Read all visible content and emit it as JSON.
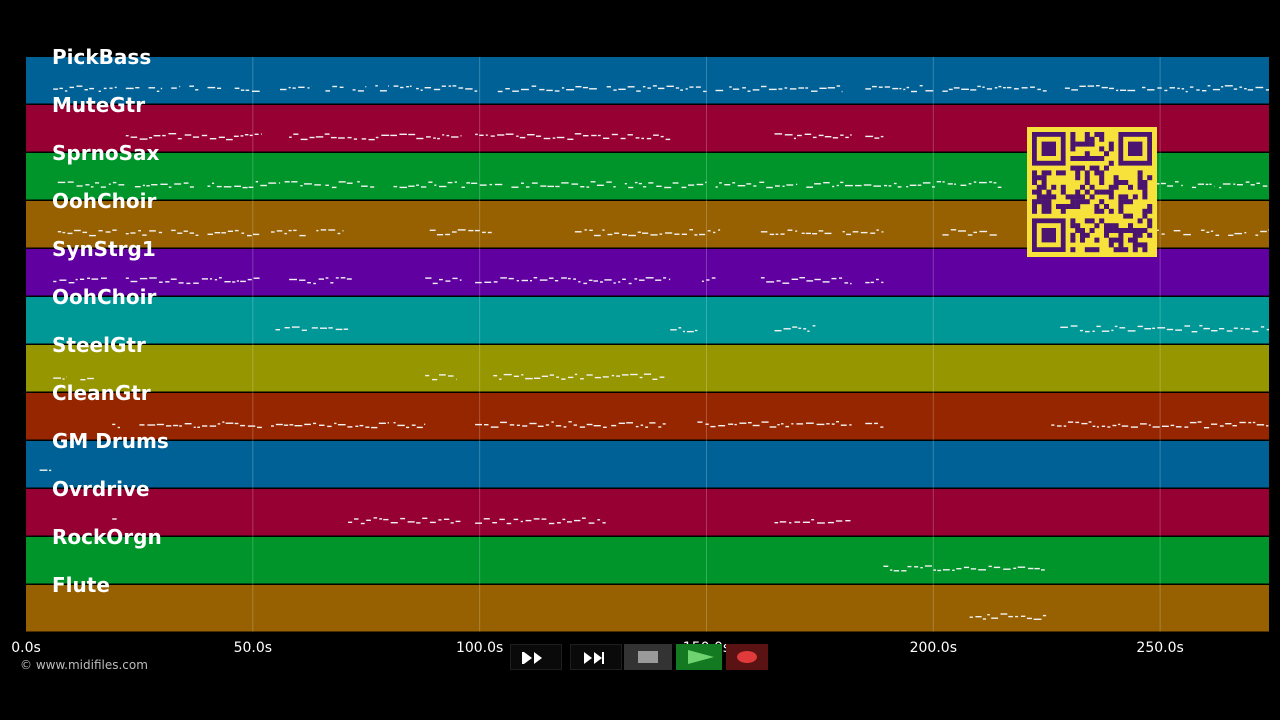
{
  "tracks": [
    {
      "name": "PickBass",
      "color": "#006197"
    },
    {
      "name": "MuteGtr",
      "color": "#960032"
    },
    {
      "name": "SprnoSax",
      "color": "#00952a"
    },
    {
      "name": "OohChoir",
      "color": "#976000"
    },
    {
      "name": "SynStrg1",
      "color": "#6100a0"
    },
    {
      "name": "OohChoir",
      "color": "#009797"
    },
    {
      "name": "SteelGtr",
      "color": "#969600"
    },
    {
      "name": "CleanGtr",
      "color": "#962600"
    },
    {
      "name": "GM Drums",
      "color": "#006197"
    },
    {
      "name": "Ovrdrive",
      "color": "#960032"
    },
    {
      "name": "RockOrgn",
      "color": "#00952a"
    },
    {
      "name": "Flute",
      "color": "#976000"
    }
  ],
  "timeline": {
    "max_seconds": 274,
    "ticks": [
      {
        "value": 0,
        "label": "0.0s"
      },
      {
        "value": 50,
        "label": "50.0s"
      },
      {
        "value": 100,
        "label": "100.0s"
      },
      {
        "value": 150,
        "label": "150.0s"
      },
      {
        "value": 200,
        "label": "200.0s"
      },
      {
        "value": 250,
        "label": "250.0s"
      }
    ]
  },
  "note_segments": [
    [
      [
        6,
        15
      ],
      [
        16,
        20
      ],
      [
        22,
        25
      ],
      [
        27,
        30
      ],
      [
        32,
        34
      ],
      [
        36,
        38
      ],
      [
        40,
        43
      ],
      [
        46,
        52
      ],
      [
        56,
        63
      ],
      [
        66,
        70
      ],
      [
        72,
        75
      ],
      [
        77,
        80
      ],
      [
        81,
        85
      ],
      [
        86,
        100
      ],
      [
        104,
        126
      ],
      [
        128,
        150
      ],
      [
        152,
        154
      ],
      [
        155,
        180
      ],
      [
        185,
        200
      ],
      [
        202,
        225
      ],
      [
        229,
        245
      ],
      [
        246,
        274
      ]
    ],
    [
      [
        22,
        52
      ],
      [
        58,
        73
      ],
      [
        74,
        96
      ],
      [
        99,
        142
      ],
      [
        165,
        182
      ],
      [
        185,
        189
      ]
    ],
    [
      [
        7,
        22
      ],
      [
        24,
        37
      ],
      [
        40,
        56
      ],
      [
        57,
        65
      ],
      [
        66,
        72
      ],
      [
        73,
        77
      ],
      [
        81,
        95
      ],
      [
        96,
        105
      ],
      [
        107,
        130
      ],
      [
        132,
        150
      ],
      [
        152,
        170
      ],
      [
        172,
        193
      ],
      [
        194,
        205
      ],
      [
        206,
        215
      ],
      [
        225,
        243
      ],
      [
        249,
        255
      ],
      [
        257,
        262
      ],
      [
        263,
        274
      ]
    ],
    [
      [
        7,
        20
      ],
      [
        22,
        30
      ],
      [
        32,
        38
      ],
      [
        40,
        52
      ],
      [
        54,
        62
      ],
      [
        64,
        70
      ],
      [
        89,
        103
      ],
      [
        121,
        153
      ],
      [
        162,
        170
      ],
      [
        171,
        178
      ],
      [
        180,
        189
      ],
      [
        202,
        214
      ],
      [
        246,
        251
      ],
      [
        253,
        257
      ],
      [
        259,
        263
      ],
      [
        265,
        269
      ],
      [
        271,
        274
      ]
    ],
    [
      [
        6,
        18
      ],
      [
        22,
        52
      ],
      [
        58,
        72
      ],
      [
        88,
        96
      ],
      [
        99,
        142
      ],
      [
        149,
        152
      ],
      [
        162,
        182
      ],
      [
        185,
        189
      ]
    ],
    [
      [
        55,
        56
      ],
      [
        57,
        62
      ],
      [
        63,
        71
      ],
      [
        142,
        148
      ],
      [
        165,
        174
      ],
      [
        228,
        274
      ]
    ],
    [
      [
        6,
        9
      ],
      [
        12,
        15
      ],
      [
        88,
        95
      ],
      [
        103,
        141
      ]
    ],
    [
      [
        19,
        21
      ],
      [
        25,
        52
      ],
      [
        54,
        80
      ],
      [
        81,
        88
      ],
      [
        99,
        128
      ],
      [
        129,
        141
      ],
      [
        148,
        182
      ],
      [
        185,
        189
      ],
      [
        226,
        274
      ]
    ],
    [
      [
        3,
        6
      ]
    ],
    [
      [
        19,
        20
      ],
      [
        71,
        96
      ],
      [
        99,
        128
      ],
      [
        165,
        182
      ]
    ],
    [
      [
        189,
        225
      ]
    ],
    [
      [
        208,
        225
      ]
    ]
  ],
  "footer": {
    "copyright": "© www.midifiles.com"
  },
  "transport": {
    "rewind": "rewind-icon",
    "fast_forward": "fast-forward-icon",
    "stop": "stop-icon",
    "play": "play-icon",
    "record": "record-icon",
    "colors": {
      "play": "#6fd36f",
      "record": "#e03a3a",
      "stop": "#9a9a9a"
    }
  },
  "qr_code": {
    "colors": {
      "fg": "#4a1470",
      "bg": "#f7e23b"
    }
  }
}
